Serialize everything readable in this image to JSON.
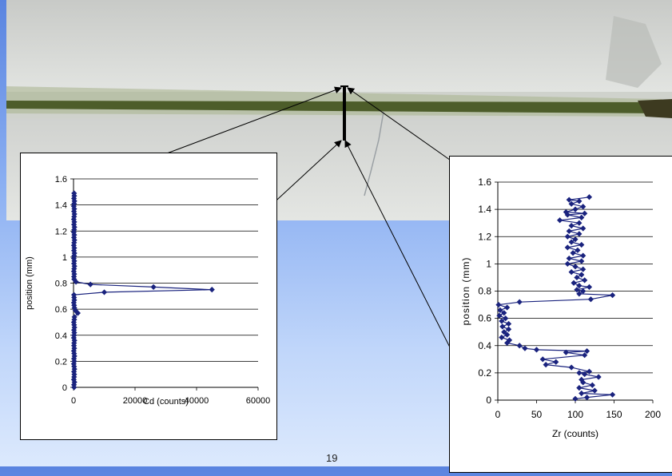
{
  "slide": {
    "page_number": "19"
  },
  "chart_data": [
    {
      "type": "line",
      "xlabel": "Cd (counts)",
      "ylabel": "position (mm)",
      "xlim": [
        0,
        60000
      ],
      "ylim": [
        0,
        1.6
      ],
      "x_ticks": [
        "0",
        "20000",
        "40000",
        "60000"
      ],
      "y_ticks": [
        "0",
        "0.2",
        "0.4",
        "0.6",
        "0.8",
        "1",
        "1.2",
        "1.4",
        "1.6"
      ],
      "grid": "horizontal",
      "marker": "diamond",
      "color": "#1a237e",
      "points": [
        [
          200,
          0.0
        ],
        [
          150,
          0.02
        ],
        [
          300,
          0.04
        ],
        [
          100,
          0.06
        ],
        [
          200,
          0.08
        ],
        [
          250,
          0.1
        ],
        [
          150,
          0.12
        ],
        [
          300,
          0.14
        ],
        [
          200,
          0.16
        ],
        [
          100,
          0.18
        ],
        [
          250,
          0.2
        ],
        [
          150,
          0.22
        ],
        [
          300,
          0.24
        ],
        [
          200,
          0.26
        ],
        [
          100,
          0.28
        ],
        [
          250,
          0.3
        ],
        [
          150,
          0.32
        ],
        [
          200,
          0.34
        ],
        [
          300,
          0.36
        ],
        [
          100,
          0.38
        ],
        [
          200,
          0.4
        ],
        [
          250,
          0.42
        ],
        [
          150,
          0.44
        ],
        [
          300,
          0.46
        ],
        [
          200,
          0.48
        ],
        [
          100,
          0.5
        ],
        [
          250,
          0.52
        ],
        [
          300,
          0.54
        ],
        [
          1400,
          0.57
        ],
        [
          600,
          0.59
        ],
        [
          300,
          0.61
        ],
        [
          200,
          0.63
        ],
        [
          100,
          0.65
        ],
        [
          250,
          0.67
        ],
        [
          200,
          0.69
        ],
        [
          150,
          0.71
        ],
        [
          10000,
          0.73
        ],
        [
          45000,
          0.75
        ],
        [
          26000,
          0.77
        ],
        [
          5500,
          0.79
        ],
        [
          800,
          0.81
        ],
        [
          200,
          0.83
        ],
        [
          150,
          0.85
        ],
        [
          250,
          0.87
        ],
        [
          100,
          0.89
        ],
        [
          200,
          0.91
        ],
        [
          300,
          0.93
        ],
        [
          150,
          0.95
        ],
        [
          250,
          0.97
        ],
        [
          100,
          0.99
        ],
        [
          200,
          1.01
        ],
        [
          300,
          1.03
        ],
        [
          150,
          1.05
        ],
        [
          250,
          1.07
        ],
        [
          100,
          1.09
        ],
        [
          200,
          1.11
        ],
        [
          300,
          1.13
        ],
        [
          150,
          1.15
        ],
        [
          250,
          1.17
        ],
        [
          100,
          1.19
        ],
        [
          200,
          1.21
        ],
        [
          300,
          1.23
        ],
        [
          150,
          1.25
        ],
        [
          250,
          1.27
        ],
        [
          100,
          1.29
        ],
        [
          200,
          1.31
        ],
        [
          300,
          1.33
        ],
        [
          150,
          1.35
        ],
        [
          250,
          1.37
        ],
        [
          100,
          1.39
        ],
        [
          200,
          1.41
        ],
        [
          300,
          1.43
        ],
        [
          150,
          1.45
        ],
        [
          250,
          1.47
        ],
        [
          200,
          1.49
        ]
      ]
    },
    {
      "type": "line",
      "xlabel": "Zr (counts)",
      "ylabel": "position (mm)",
      "xlim": [
        0,
        200
      ],
      "ylim": [
        0,
        1.6
      ],
      "x_ticks": [
        "0",
        "50",
        "100",
        "150",
        "200"
      ],
      "y_ticks": [
        "0",
        "0.2",
        "0.4",
        "0.6",
        "0.8",
        "1",
        "1.2",
        "1.4",
        "1.6"
      ],
      "grid": "horizontal",
      "marker": "diamond",
      "color": "#1a237e",
      "points": [
        [
          100,
          0.01
        ],
        [
          115,
          0.02
        ],
        [
          148,
          0.04
        ],
        [
          108,
          0.05
        ],
        [
          125,
          0.07
        ],
        [
          105,
          0.09
        ],
        [
          122,
          0.11
        ],
        [
          110,
          0.13
        ],
        [
          108,
          0.15
        ],
        [
          130,
          0.17
        ],
        [
          112,
          0.19
        ],
        [
          105,
          0.2
        ],
        [
          118,
          0.21
        ],
        [
          95,
          0.24
        ],
        [
          62,
          0.26
        ],
        [
          75,
          0.28
        ],
        [
          58,
          0.3
        ],
        [
          112,
          0.33
        ],
        [
          88,
          0.35
        ],
        [
          115,
          0.36
        ],
        [
          50,
          0.37
        ],
        [
          35,
          0.38
        ],
        [
          28,
          0.4
        ],
        [
          12,
          0.42
        ],
        [
          15,
          0.44
        ],
        [
          5,
          0.46
        ],
        [
          12,
          0.48
        ],
        [
          8,
          0.5
        ],
        [
          14,
          0.52
        ],
        [
          6,
          0.54
        ],
        [
          14,
          0.56
        ],
        [
          5,
          0.58
        ],
        [
          10,
          0.6
        ],
        [
          2,
          0.62
        ],
        [
          8,
          0.64
        ],
        [
          3,
          0.66
        ],
        [
          12,
          0.68
        ],
        [
          1,
          0.7
        ],
        [
          28,
          0.72
        ],
        [
          120,
          0.74
        ],
        [
          148,
          0.77
        ],
        [
          105,
          0.78
        ],
        [
          110,
          0.8
        ],
        [
          102,
          0.81
        ],
        [
          118,
          0.83
        ],
        [
          105,
          0.84
        ],
        [
          98,
          0.86
        ],
        [
          112,
          0.88
        ],
        [
          102,
          0.9
        ],
        [
          108,
          0.92
        ],
        [
          95,
          0.94
        ],
        [
          110,
          0.96
        ],
        [
          100,
          0.98
        ],
        [
          90,
          1.0
        ],
        [
          108,
          1.02
        ],
        [
          92,
          1.04
        ],
        [
          110,
          1.06
        ],
        [
          97,
          1.08
        ],
        [
          103,
          1.1
        ],
        [
          90,
          1.12
        ],
        [
          108,
          1.14
        ],
        [
          95,
          1.16
        ],
        [
          100,
          1.18
        ],
        [
          90,
          1.2
        ],
        [
          105,
          1.22
        ],
        [
          92,
          1.24
        ],
        [
          110,
          1.26
        ],
        [
          95,
          1.28
        ],
        [
          105,
          1.3
        ],
        [
          80,
          1.32
        ],
        [
          108,
          1.34
        ],
        [
          90,
          1.36
        ],
        [
          112,
          1.37
        ],
        [
          88,
          1.38
        ],
        [
          100,
          1.4
        ],
        [
          110,
          1.42
        ],
        [
          95,
          1.44
        ],
        [
          105,
          1.46
        ],
        [
          92,
          1.47
        ],
        [
          118,
          1.49
        ]
      ]
    }
  ]
}
